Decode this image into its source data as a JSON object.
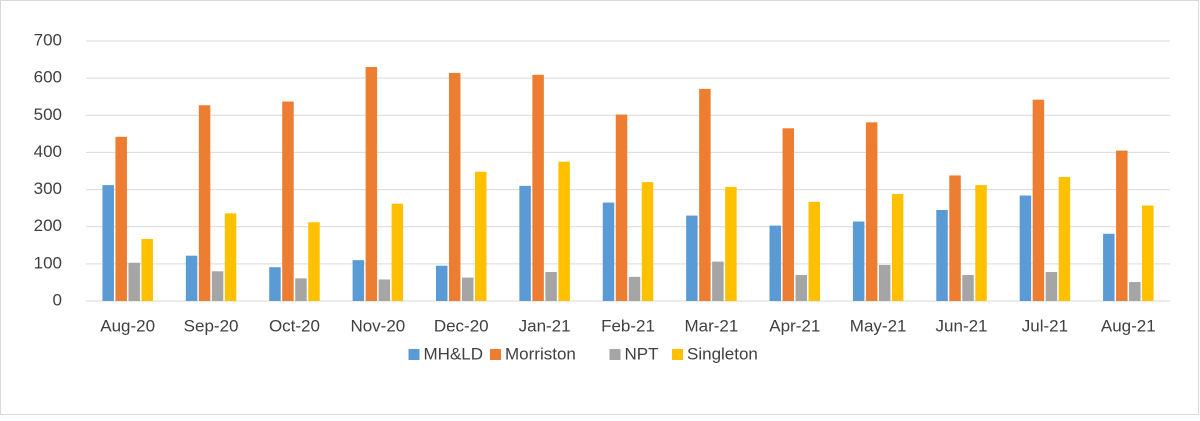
{
  "chart_data": {
    "type": "bar",
    "categories": [
      "Aug-20",
      "Sep-20",
      "Oct-20",
      "Nov-20",
      "Dec-20",
      "Jan-21",
      "Feb-21",
      "Mar-21",
      "Apr-21",
      "May-21",
      "Jun-21",
      "Jul-21",
      "Aug-21"
    ],
    "series": [
      {
        "name": "MH&LD",
        "color": "#5b9bd5",
        "values": [
          312,
          122,
          91,
          110,
          95,
          310,
          265,
          230,
          203,
          214,
          245,
          284,
          181
        ]
      },
      {
        "name": "Morriston",
        "color": "#ed7d31",
        "values": [
          442,
          527,
          537,
          630,
          614,
          609,
          502,
          571,
          465,
          481,
          338,
          542,
          405
        ]
      },
      {
        "name": "NPT",
        "color": "#a5a5a5",
        "values": [
          103,
          80,
          61,
          58,
          63,
          78,
          65,
          106,
          70,
          97,
          70,
          78,
          51
        ]
      },
      {
        "name": "Singleton",
        "color": "#ffc000",
        "values": [
          167,
          236,
          212,
          262,
          348,
          375,
          320,
          307,
          267,
          288,
          312,
          334,
          257
        ]
      }
    ],
    "ylim": [
      0,
      700
    ],
    "yticks": [
      0,
      100,
      200,
      300,
      400,
      500,
      600,
      700
    ],
    "grid": true,
    "legend": "bottom"
  }
}
